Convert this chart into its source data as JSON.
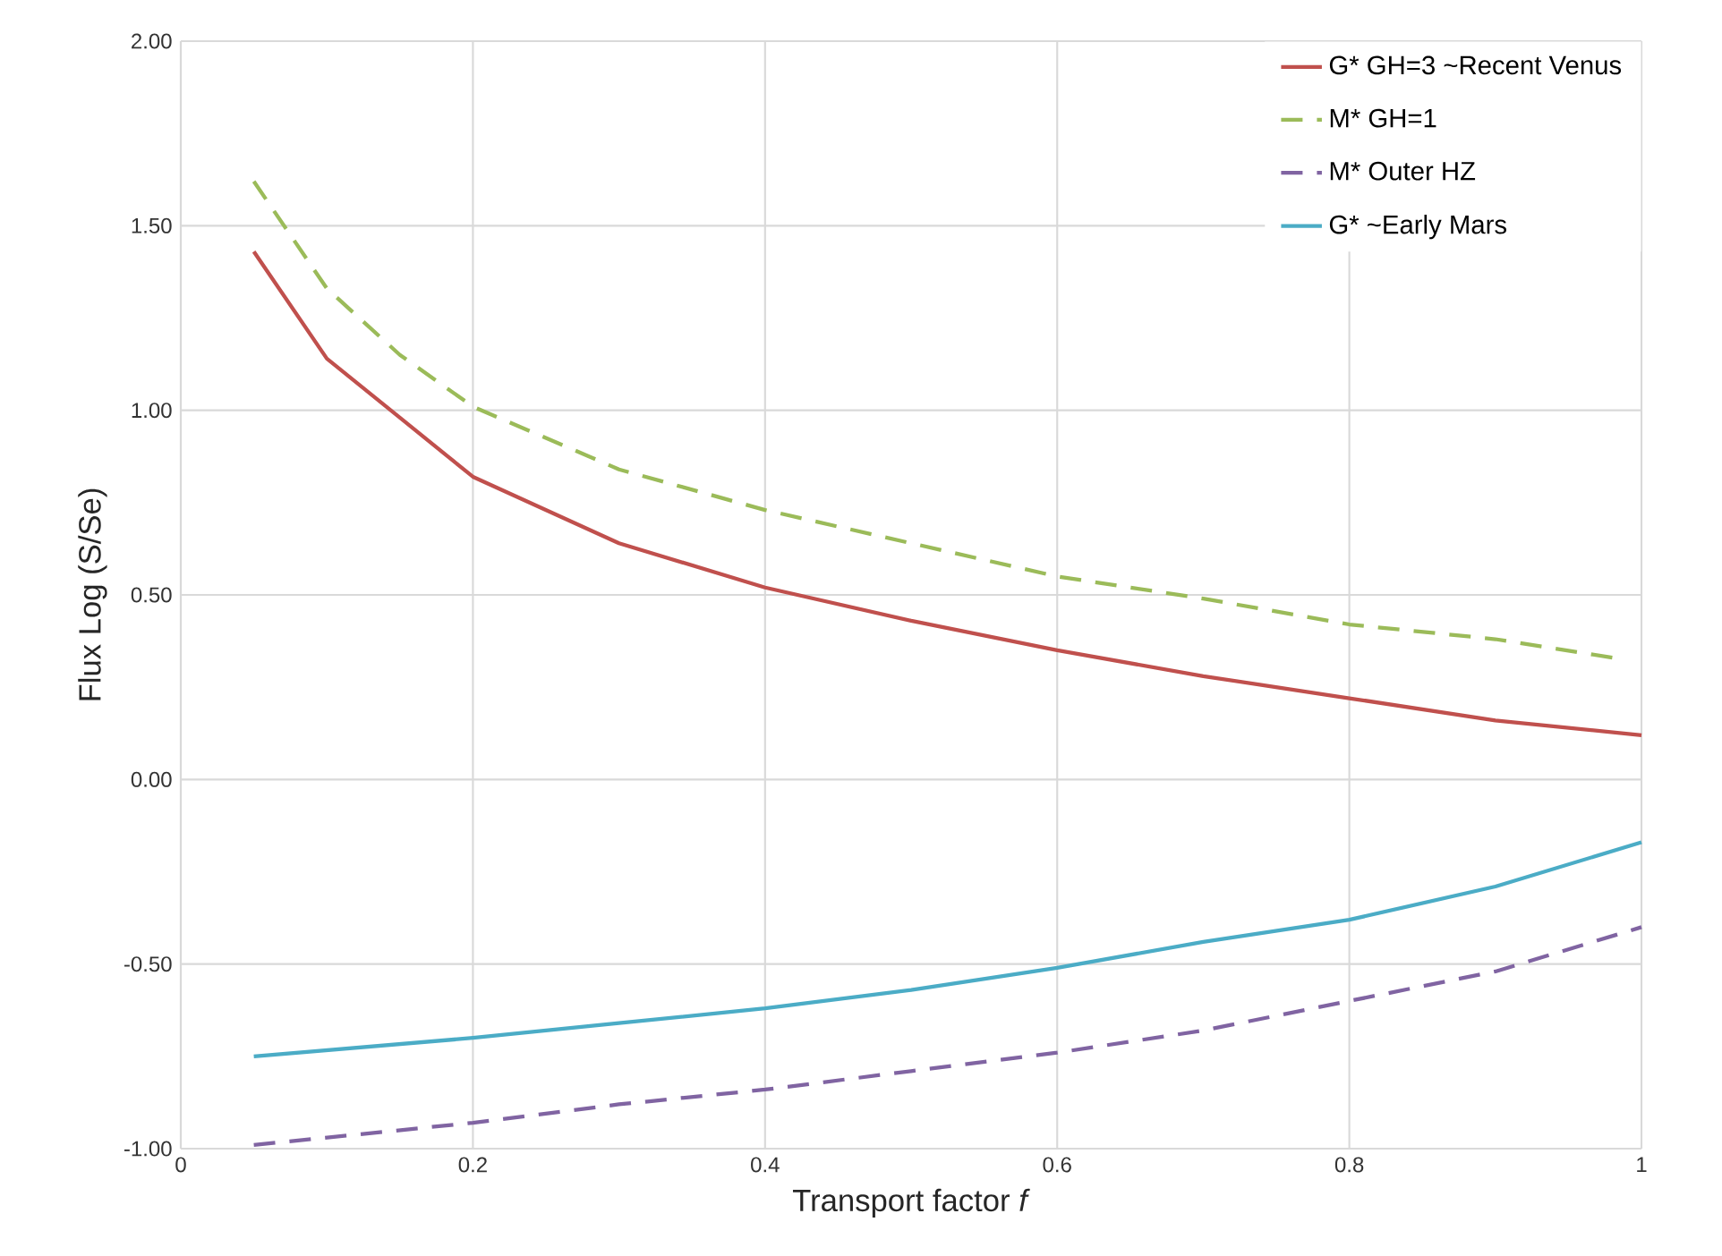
{
  "chart_data": {
    "type": "line",
    "xlabel": "Transport factor *f*",
    "ylabel": "Flux  Log (S/Se)",
    "xlim": [
      0,
      1
    ],
    "ylim": [
      -1,
      2
    ],
    "xticks": [
      0,
      0.2,
      0.4,
      0.6,
      0.8,
      1
    ],
    "yticks": [
      {
        "value": -1,
        "label": "-1.00"
      },
      {
        "value": -0.5,
        "label": "-0.50"
      },
      {
        "value": 0,
        "label": "0.00"
      },
      {
        "value": 0.5,
        "label": "0.50"
      },
      {
        "value": 1,
        "label": "1.00"
      },
      {
        "value": 1.5,
        "label": "1.50"
      },
      {
        "value": 2,
        "label": "2.00"
      }
    ],
    "grid": true,
    "legend": "top right",
    "marker": "none",
    "series": [
      {
        "name": "G* GH=3 ~Recent Venus",
        "color": "#c0504d",
        "line_style": "solid",
        "x": [
          0.05,
          0.1,
          0.15,
          0.2,
          0.3,
          0.4,
          0.5,
          0.6,
          0.7,
          0.8,
          0.9,
          1.0
        ],
        "values": [
          1.43,
          1.14,
          0.98,
          0.82,
          0.64,
          0.52,
          0.43,
          0.35,
          0.28,
          0.22,
          0.16,
          0.12
        ]
      },
      {
        "name": "M* GH=1",
        "color": "#9bbb59",
        "line_style": "dashed",
        "x": [
          0.05,
          0.1,
          0.15,
          0.2,
          0.3,
          0.4,
          0.5,
          0.6,
          0.7,
          0.8,
          0.9,
          0.98
        ],
        "values": [
          1.62,
          1.33,
          1.15,
          1.01,
          0.84,
          0.73,
          0.64,
          0.55,
          0.49,
          0.42,
          0.38,
          0.33
        ]
      },
      {
        "name": "M* Outer HZ",
        "color": "#8064a2",
        "line_style": "dashed",
        "x": [
          0.05,
          0.2,
          0.3,
          0.4,
          0.5,
          0.6,
          0.7,
          0.8,
          0.9,
          1.0
        ],
        "values": [
          -0.99,
          -0.93,
          -0.88,
          -0.84,
          -0.79,
          -0.74,
          -0.68,
          -0.6,
          -0.52,
          -0.4
        ]
      },
      {
        "name": "G* ~Early Mars",
        "color": "#4bacc6",
        "line_style": "solid",
        "x": [
          0.05,
          0.2,
          0.3,
          0.4,
          0.5,
          0.6,
          0.7,
          0.8,
          0.9,
          1.0
        ],
        "values": [
          -0.75,
          -0.7,
          -0.66,
          -0.62,
          -0.57,
          -0.51,
          -0.44,
          -0.38,
          -0.29,
          -0.17
        ]
      }
    ]
  }
}
